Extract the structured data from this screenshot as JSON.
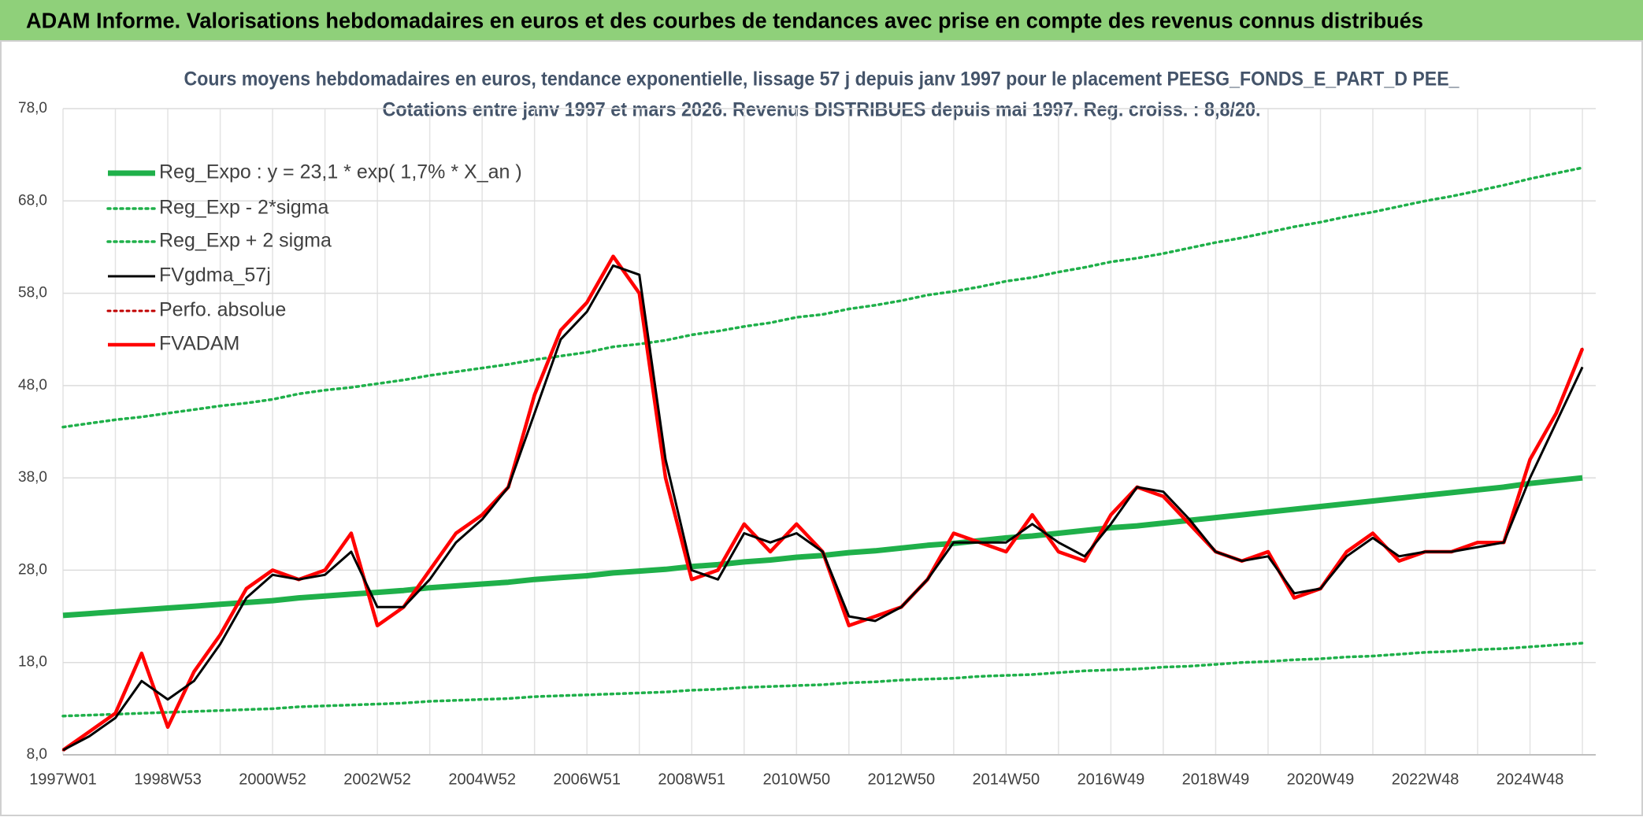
{
  "header": {
    "title": "ADAM Informe. Valorisations hebdomadaires en euros et des courbes de tendances avec prise en compte des revenus connus distribués"
  },
  "chart_data": {
    "type": "line",
    "title": "Cours moyens hebdomadaires en euros, tendance exponentielle, lissage 57 j depuis janv 1997 pour le placement PEESG_FONDS_E_PART_D PEE_",
    "subtitle": "Cotations entre janv 1997 et mars 2026. Revenus DISTRIBUES depuis mai 1997. Reg. croiss. : 8,8/20.",
    "categories": [
      "1997W01",
      null,
      null,
      null,
      "1998W53",
      null,
      null,
      null,
      "2000W52",
      null,
      null,
      null,
      "2002W52",
      null,
      null,
      null,
      "2004W52",
      null,
      null,
      null,
      "2006W51",
      null,
      null,
      null,
      "2008W51",
      null,
      null,
      null,
      "2010W50",
      null,
      null,
      null,
      "2012W50",
      null,
      null,
      null,
      "2014W50",
      null,
      null,
      null,
      "2016W49",
      null,
      null,
      null,
      "2018W49",
      null,
      null,
      null,
      "2020W49",
      null,
      null,
      null,
      "2022W48",
      null,
      null,
      null,
      "2024W48",
      null,
      null
    ],
    "ylim": [
      8,
      78
    ],
    "yticks": [
      {
        "value": 8,
        "label": "8,0"
      },
      {
        "value": 18,
        "label": "18,0"
      },
      {
        "value": 28,
        "label": "28,0"
      },
      {
        "value": 38,
        "label": "38,0"
      },
      {
        "value": 48,
        "label": "48,0"
      },
      {
        "value": 58,
        "label": "58,0"
      },
      {
        "value": 68,
        "label": "68,0"
      },
      {
        "value": 78,
        "label": "78,0"
      }
    ],
    "grid": true,
    "legend": "top-left",
    "series": [
      {
        "name": "Reg_Expo : y = 23,1 * exp( 1,7% *  X_an )",
        "color": "#1fb04a",
        "dotted": false,
        "values": [
          23.1,
          23.3,
          23.5,
          23.7,
          23.9,
          24.1,
          24.3,
          24.5,
          24.7,
          25.0,
          25.2,
          25.4,
          25.6,
          25.8,
          26.1,
          26.3,
          26.5,
          26.7,
          27.0,
          27.2,
          27.4,
          27.7,
          27.9,
          28.1,
          28.4,
          28.6,
          28.9,
          29.1,
          29.4,
          29.6,
          29.9,
          30.1,
          30.4,
          30.7,
          30.9,
          31.2,
          31.5,
          31.7,
          32.0,
          32.3,
          32.6,
          32.8,
          33.1,
          33.4,
          33.7,
          34.0,
          34.3,
          34.6,
          34.9,
          35.2,
          35.5,
          35.8,
          36.1,
          36.4,
          36.7,
          37.0,
          37.4,
          37.7,
          38.0
        ]
      },
      {
        "name": "Reg_Exp - 2*sigma",
        "color": "#1fb04a",
        "dotted": true,
        "values": [
          12.2,
          12.3,
          12.4,
          12.5,
          12.6,
          12.7,
          12.8,
          12.9,
          13.0,
          13.2,
          13.3,
          13.4,
          13.5,
          13.6,
          13.8,
          13.9,
          14.0,
          14.1,
          14.3,
          14.4,
          14.5,
          14.6,
          14.7,
          14.8,
          15.0,
          15.1,
          15.3,
          15.4,
          15.5,
          15.6,
          15.8,
          15.9,
          16.1,
          16.2,
          16.3,
          16.5,
          16.6,
          16.7,
          16.9,
          17.1,
          17.2,
          17.3,
          17.5,
          17.6,
          17.8,
          18.0,
          18.1,
          18.3,
          18.4,
          18.6,
          18.7,
          18.9,
          19.1,
          19.2,
          19.4,
          19.5,
          19.7,
          19.9,
          20.1
        ]
      },
      {
        "name": "Reg_Exp + 2 sigma",
        "color": "#1fb04a",
        "dotted": true,
        "values": [
          43.5,
          43.9,
          44.3,
          44.6,
          45.0,
          45.4,
          45.8,
          46.1,
          46.5,
          47.1,
          47.5,
          47.8,
          48.2,
          48.6,
          49.1,
          49.5,
          49.9,
          50.3,
          50.8,
          51.2,
          51.6,
          52.2,
          52.5,
          52.9,
          53.5,
          53.9,
          54.4,
          54.8,
          55.4,
          55.7,
          56.3,
          56.7,
          57.2,
          57.8,
          58.2,
          58.7,
          59.3,
          59.7,
          60.3,
          60.8,
          61.4,
          61.8,
          62.3,
          62.9,
          63.5,
          64.0,
          64.6,
          65.2,
          65.7,
          66.3,
          66.8,
          67.4,
          68.0,
          68.5,
          69.1,
          69.7,
          70.4,
          71.0,
          71.6
        ]
      },
      {
        "name": "FVgdma_57j",
        "color": "#000000",
        "dotted": false,
        "values": [
          8.5,
          10,
          12,
          16,
          14,
          16,
          20,
          25,
          27.5,
          27,
          27.5,
          30,
          24,
          24,
          27,
          31,
          33.5,
          37,
          45,
          53,
          56,
          61,
          60,
          40,
          28,
          27,
          32,
          31,
          32,
          30,
          23,
          22.5,
          24,
          27,
          31,
          31,
          31,
          33,
          31,
          29.5,
          33,
          37,
          36.5,
          33.5,
          30,
          29,
          29.5,
          25.5,
          26,
          29.5,
          31.5,
          29.5,
          30,
          30,
          30.5,
          31,
          38,
          44,
          50
        ]
      },
      {
        "name": "Perfo. absolue",
        "color": "#c00000",
        "dotted": true,
        "values": [
          8.5,
          10.5,
          12.5,
          19,
          11,
          17,
          21,
          26,
          28,
          27,
          28,
          32,
          22,
          24,
          28,
          32,
          34,
          37,
          47,
          54,
          57,
          62,
          58,
          38,
          27,
          28,
          33,
          30,
          33,
          30,
          22,
          23,
          24,
          27,
          32,
          31,
          30,
          34,
          30,
          29,
          34,
          37,
          36,
          33,
          30,
          29,
          30,
          25,
          26,
          30,
          32,
          29,
          30,
          30,
          31,
          31,
          40,
          45,
          52
        ]
      },
      {
        "name": "FVADAM",
        "color": "#ff0000",
        "dotted": false,
        "values": [
          8.5,
          10.5,
          12.5,
          19,
          11,
          17,
          21,
          26,
          28,
          27,
          28,
          32,
          22,
          24,
          28,
          32,
          34,
          37,
          47,
          54,
          57,
          62,
          58,
          38,
          27,
          28,
          33,
          30,
          33,
          30,
          22,
          23,
          24,
          27,
          32,
          31,
          30,
          34,
          30,
          29,
          34,
          37,
          36,
          33,
          30,
          29,
          30,
          25,
          26,
          30,
          32,
          29,
          30,
          30,
          31,
          31,
          40,
          45,
          52
        ]
      }
    ]
  }
}
